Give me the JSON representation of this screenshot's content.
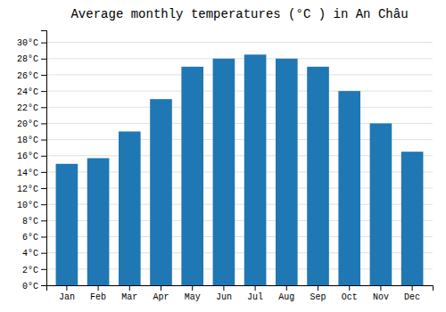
{
  "chart_data": {
    "type": "bar",
    "title": "Average monthly temperatures (°C ) in An Châu",
    "categories": [
      "Jan",
      "Feb",
      "Mar",
      "Apr",
      "May",
      "Jun",
      "Jul",
      "Aug",
      "Sep",
      "Oct",
      "Nov",
      "Dec"
    ],
    "values": [
      15.0,
      15.7,
      19.0,
      23.0,
      27.0,
      28.0,
      28.5,
      28.0,
      27.0,
      24.0,
      20.0,
      16.5
    ],
    "ylim": [
      0,
      31.5
    ],
    "yticks": [
      {
        "value": 0,
        "label": "0°C"
      },
      {
        "value": 2,
        "label": "2°C"
      },
      {
        "value": 4,
        "label": "4°C"
      },
      {
        "value": 6,
        "label": "6°C"
      },
      {
        "value": 8,
        "label": "8°C"
      },
      {
        "value": 10,
        "label": "10°C"
      },
      {
        "value": 12,
        "label": "12°C"
      },
      {
        "value": 14,
        "label": "14°C"
      },
      {
        "value": 16,
        "label": "16°C"
      },
      {
        "value": 18,
        "label": "18°C"
      },
      {
        "value": 20,
        "label": "20°C"
      },
      {
        "value": 22,
        "label": "22°C"
      },
      {
        "value": 24,
        "label": "24°C"
      },
      {
        "value": 26,
        "label": "26°C"
      },
      {
        "value": 28,
        "label": "28°C"
      },
      {
        "value": 30,
        "label": "30°C"
      }
    ],
    "grid": true
  }
}
